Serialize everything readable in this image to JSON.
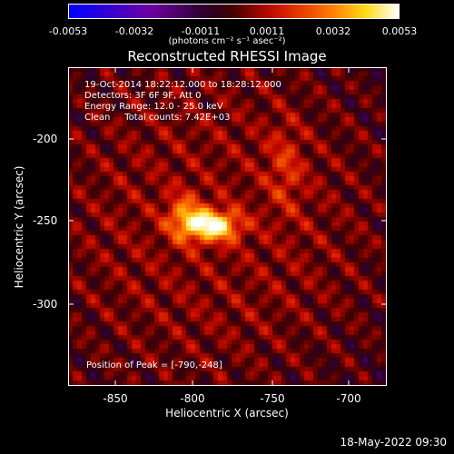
{
  "colorbar": {
    "ticks": [
      "-0.0053",
      "-0.0032",
      "-0.0011",
      "0.0011",
      "0.0032",
      "0.0053"
    ],
    "units": "(photons cm⁻² s⁻¹ asec⁻²)"
  },
  "title": "Reconstructed RHESSI Image",
  "info": {
    "line1": "19-Oct-2014 18:22:12.000 to 18:28:12.000",
    "line2": "Detectors: 3F 6F 9F, Att 0",
    "line3": "Energy Range: 12.0 - 25.0 keV",
    "line4": "Clean     Total counts: 7.42E+03"
  },
  "peak": "Position of Peak = [-790,-248]",
  "stamp": "18-May-2022 09:30",
  "chart_data": {
    "type": "heatmap",
    "title": "Reconstructed RHESSI Image",
    "xlabel": "Heliocentric X (arcsec)",
    "ylabel": "Heliocentric Y (arcsec)",
    "xlim": [
      -880,
      -680
    ],
    "ylim": [
      -350,
      -150
    ],
    "xticks": [
      "-850",
      "-800",
      "-750",
      "-700"
    ],
    "yticks": [
      "-200",
      "-250",
      "-300"
    ],
    "color_range": [
      -0.0053,
      0.0053
    ],
    "colormap": "blue-purple-red-yellow-white",
    "peak_position": [
      -790,
      -248
    ]
  }
}
